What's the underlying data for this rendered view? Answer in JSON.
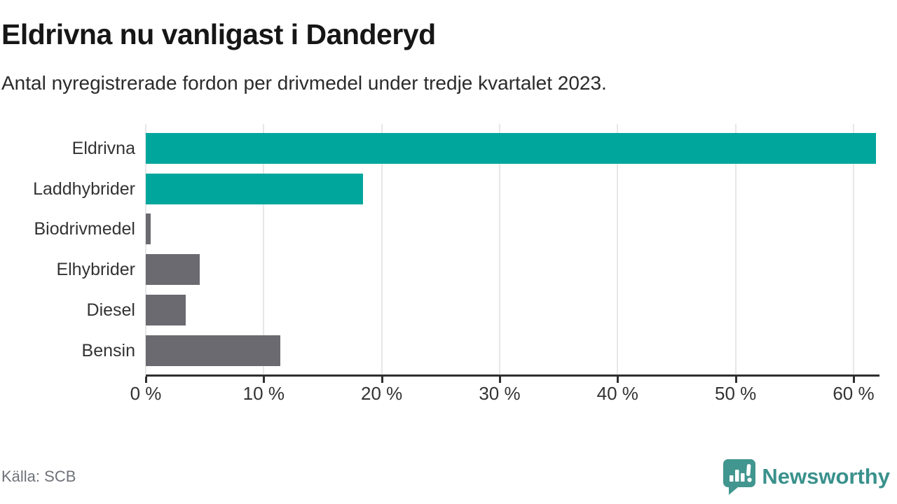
{
  "chart_data": {
    "type": "bar",
    "orientation": "horizontal",
    "title": "Eldrivna nu vanligast i Danderyd",
    "subtitle": "Antal nyregistrerade fordon per drivmedel under tredje kvartalet 2023.",
    "categories": [
      "Eldrivna",
      "Laddhybrider",
      "Biodrivmedel",
      "Elhybrider",
      "Diesel",
      "Bensin"
    ],
    "values": [
      61.9,
      18.4,
      0.4,
      4.6,
      3.4,
      11.4
    ],
    "unit": "%",
    "xlim": [
      0,
      62.2
    ],
    "x_ticks": [
      0,
      10,
      20,
      30,
      40,
      50,
      60
    ],
    "x_tick_labels": [
      "0 %",
      "10 %",
      "20 %",
      "30 %",
      "40 %",
      "50 %",
      "60 %"
    ],
    "highlighted_categories": [
      "Eldrivna",
      "Laddhybrider"
    ],
    "colors": {
      "highlight": "#00a69c",
      "default": "#6a6a70"
    },
    "grid": "vertical-gridlines",
    "legend": false
  },
  "footer": {
    "source": "Källa: SCB",
    "logo_text": "Newsworthy",
    "logo_color": "#3a918c",
    "logo_icon_color": "#41968f"
  }
}
